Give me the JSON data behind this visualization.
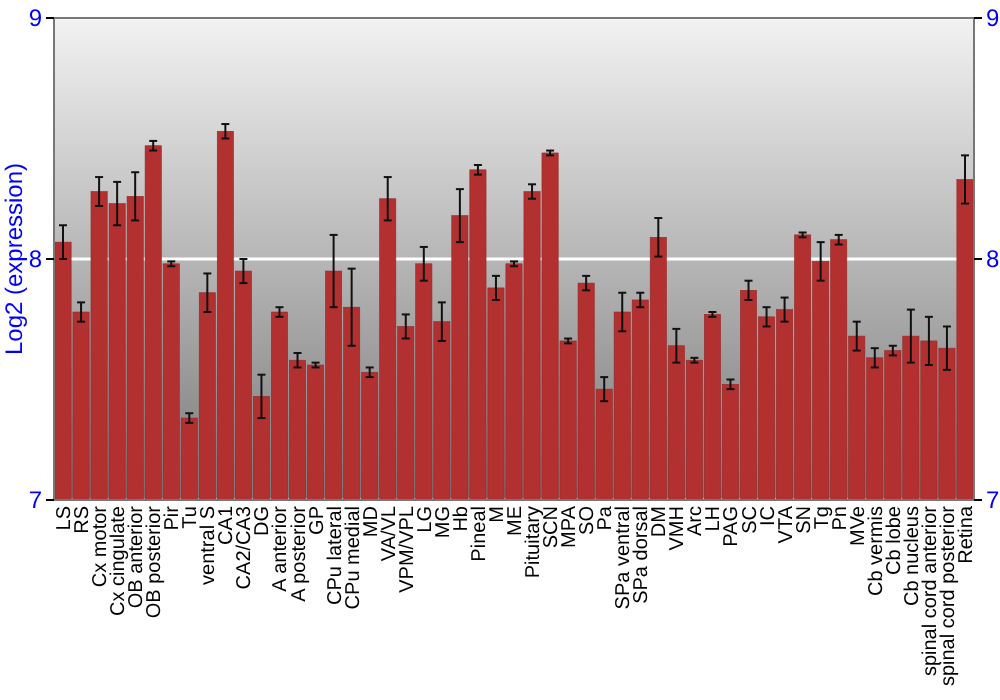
{
  "chart_data": {
    "type": "bar",
    "ylabel": "Log2 (expression)",
    "categories": [
      "LS",
      "RS",
      "Cx motor",
      "Cx cingulate",
      "OB anterior",
      "OB posterior",
      "Pir",
      "Tu",
      "ventral S",
      "CA1",
      "CA2/CA3",
      "DG",
      "A anterior",
      "A posterior",
      "GP",
      "CPu lateral",
      "CPu medial",
      "MD",
      "VA/VL",
      "VPM/VPL",
      "LG",
      "MG",
      "Hb",
      "Pineal",
      "M",
      "ME",
      "Pituitary",
      "SCN",
      "MPA",
      "SO",
      "Pa",
      "SPa ventral",
      "SPa dorsal",
      "DM",
      "VMH",
      "Arc",
      "LH",
      "PAG",
      "SC",
      "IC",
      "VTA",
      "SN",
      "Tg",
      "Pn",
      "MVe",
      "Cb vermis",
      "Cb lobe",
      "Cb nucleus",
      "spinal cord anterior",
      "spinal cord posterior",
      "Retina"
    ],
    "series": [
      {
        "color": "#b33030",
        "values": [
          8.07,
          7.78,
          8.28,
          8.23,
          8.26,
          8.47,
          7.98,
          7.34,
          7.86,
          8.53,
          7.95,
          7.43,
          7.78,
          7.58,
          7.56,
          7.95,
          7.8,
          7.53,
          8.25,
          7.72,
          7.98,
          7.74,
          8.18,
          8.37,
          7.88,
          7.98,
          8.28,
          8.44,
          7.66,
          7.9,
          7.46,
          7.78,
          7.83,
          8.09,
          7.64,
          7.58,
          7.77,
          7.48,
          7.87,
          7.76,
          7.79,
          8.1,
          7.99,
          8.08,
          7.68,
          7.59,
          7.62,
          7.68,
          7.66,
          7.63,
          8.33
        ],
        "errors": [
          0.07,
          0.04,
          0.06,
          0.09,
          0.1,
          0.02,
          0.01,
          0.02,
          0.08,
          0.03,
          0.05,
          0.09,
          0.02,
          0.03,
          0.01,
          0.15,
          0.16,
          0.02,
          0.09,
          0.05,
          0.07,
          0.08,
          0.11,
          0.02,
          0.05,
          0.01,
          0.03,
          0.01,
          0.01,
          0.03,
          0.05,
          0.08,
          0.03,
          0.08,
          0.07,
          0.01,
          0.01,
          0.02,
          0.04,
          0.04,
          0.05,
          0.01,
          0.08,
          0.02,
          0.06,
          0.04,
          0.02,
          0.11,
          0.1,
          0.09,
          0.1
        ]
      }
    ],
    "ylim": [
      7,
      9
    ],
    "yticks": [
      7,
      8,
      9
    ],
    "y2lim": [
      7,
      9
    ],
    "y2ticks": [
      7,
      8,
      9
    ],
    "grid": "y"
  }
}
